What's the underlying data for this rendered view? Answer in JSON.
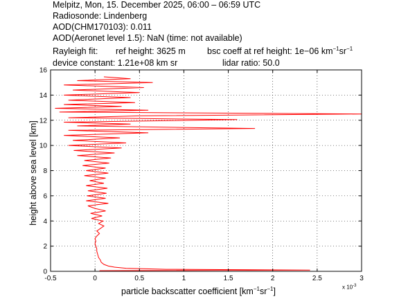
{
  "header": {
    "line1": "Melpitz, Mon, 15. December 2025, 06:00 – 06:59 UTC",
    "line2": "Radiosonde: Lindenberg",
    "line3": "AOD(CHM170103): 0.011",
    "line4": "AOD(Aeronet level 1.5): NaN   (time: not available)",
    "rayleigh_label": "Rayleigh fit:",
    "ref_height": "ref height: 3625 m",
    "bsc_coeff_prefix": "bsc coeff at ref height: 1e−06 km",
    "bsc_coeff_unit_sr": "sr",
    "device_constant": "device constant: 1.21e+08 km sr",
    "lidar_ratio": "lidar ratio: 50.0"
  },
  "chart_data": {
    "type": "line",
    "xlabel_main": "particle backscatter coefficient [km",
    "xlabel_sr": "sr",
    "xlabel_close": "]",
    "exp_minus1": "−1",
    "xlabel_scale": "x 10",
    "xlabel_scale_exp": "-3",
    "ylabel": "height above sea level [km]",
    "xlim": [
      -0.5,
      3
    ],
    "ylim": [
      0,
      16
    ],
    "x_ticks": [
      "-0.5",
      "0",
      "0.5",
      "1",
      "1.5",
      "2",
      "2.5",
      "3"
    ],
    "x_tick_values": [
      -0.5,
      0,
      0.5,
      1,
      1.5,
      2,
      2.5,
      3
    ],
    "y_ticks": [
      "0",
      "2",
      "4",
      "6",
      "8",
      "10",
      "12",
      "14",
      "16"
    ],
    "y_tick_values": [
      0,
      2,
      4,
      6,
      8,
      10,
      12,
      14,
      16
    ],
    "grid": true,
    "line_color": "#ff0000",
    "series": [
      {
        "values": [
          [
            0.05,
            0.05
          ],
          [
            2.42,
            0.1
          ],
          [
            0.8,
            0.16
          ],
          [
            0.35,
            0.24
          ],
          [
            0.22,
            0.33
          ],
          [
            0.15,
            0.42
          ],
          [
            0.1,
            0.55
          ],
          [
            0.07,
            0.72
          ],
          [
            0.06,
            0.9
          ],
          [
            0.04,
            1.1
          ],
          [
            0.03,
            1.35
          ],
          [
            0.02,
            1.6
          ],
          [
            0.02,
            1.8
          ],
          [
            0.01,
            2.0
          ],
          [
            0.0,
            2.2
          ],
          [
            0.01,
            2.4
          ],
          [
            0.0,
            2.6
          ],
          [
            0.02,
            2.8
          ],
          [
            0.05,
            3.0
          ],
          [
            0.02,
            3.2
          ],
          [
            0.06,
            3.4
          ],
          [
            0.1,
            3.6
          ],
          [
            0.04,
            3.8
          ],
          [
            0.09,
            4.0
          ],
          [
            -0.04,
            4.2
          ],
          [
            0.08,
            4.4
          ],
          [
            -0.05,
            4.6
          ],
          [
            0.12,
            4.8
          ],
          [
            0.0,
            5.0
          ],
          [
            -0.08,
            5.2
          ],
          [
            0.15,
            5.4
          ],
          [
            -0.1,
            5.6
          ],
          [
            0.12,
            5.8
          ],
          [
            -0.09,
            6.0
          ],
          [
            0.13,
            6.2
          ],
          [
            -0.08,
            6.4
          ],
          [
            0.14,
            6.6
          ],
          [
            -0.1,
            6.8
          ],
          [
            0.1,
            7.0
          ],
          [
            -0.06,
            7.2
          ],
          [
            0.12,
            7.4
          ],
          [
            -0.12,
            7.6
          ],
          [
            0.15,
            7.8
          ],
          [
            -0.1,
            8.0
          ],
          [
            0.12,
            8.2
          ],
          [
            -0.14,
            8.4
          ],
          [
            0.16,
            8.6
          ],
          [
            -0.12,
            8.8
          ],
          [
            0.18,
            9.0
          ],
          [
            -0.2,
            9.2
          ],
          [
            0.22,
            9.4
          ],
          [
            -0.24,
            9.6
          ],
          [
            0.3,
            9.8
          ],
          [
            -0.3,
            10.0
          ],
          [
            0.35,
            10.2
          ],
          [
            -0.25,
            10.4
          ],
          [
            0.28,
            10.6
          ],
          [
            -0.35,
            10.8
          ],
          [
            0.6,
            11.0
          ],
          [
            -0.3,
            11.2
          ],
          [
            1.8,
            11.35
          ],
          [
            -0.2,
            11.55
          ],
          [
            0.4,
            11.7
          ],
          [
            -0.35,
            11.85
          ],
          [
            1.6,
            12.05
          ],
          [
            -0.3,
            12.2
          ],
          [
            0.5,
            12.35
          ],
          [
            3.0,
            12.5
          ],
          [
            -0.4,
            12.65
          ],
          [
            0.6,
            12.8
          ],
          [
            -0.45,
            12.95
          ],
          [
            0.3,
            13.1
          ],
          [
            -0.35,
            13.25
          ],
          [
            0.45,
            13.4
          ],
          [
            -0.3,
            13.6
          ],
          [
            0.4,
            13.8
          ],
          [
            -0.35,
            14.0
          ],
          [
            0.5,
            14.2
          ],
          [
            -0.25,
            14.4
          ],
          [
            0.55,
            14.6
          ],
          [
            -0.35,
            14.8
          ],
          [
            0.65,
            15.0
          ],
          [
            -0.2,
            15.15
          ],
          [
            0.4,
            15.3
          ],
          [
            0.1,
            15.45
          ]
        ]
      }
    ]
  }
}
